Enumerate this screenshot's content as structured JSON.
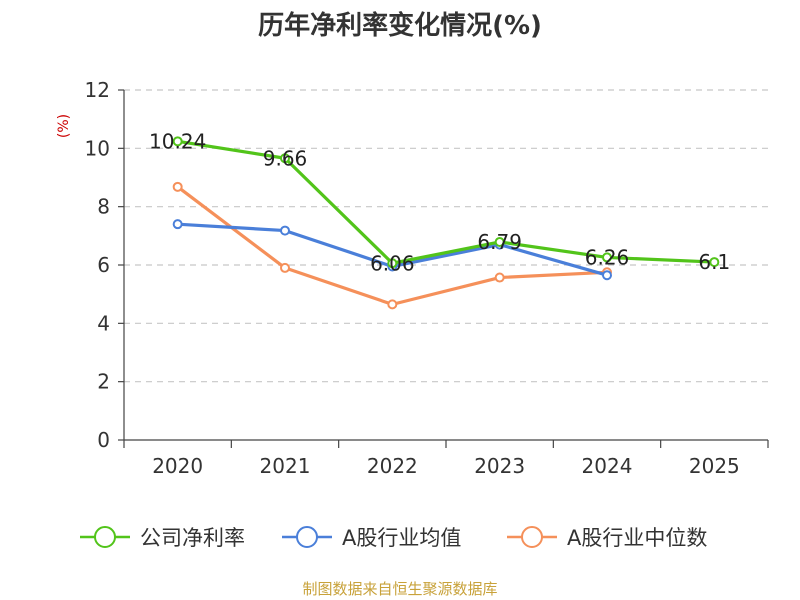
{
  "chart_data": {
    "type": "line",
    "title": "历年净利率变化情况(%)",
    "ylabel": "(%)",
    "xlabel": "",
    "categories": [
      "2020",
      "2021",
      "2022",
      "2023",
      "2024",
      "2025"
    ],
    "ylim": [
      0,
      12
    ],
    "yticks": [
      "0",
      "2",
      "4",
      "6",
      "8",
      "10",
      "12"
    ],
    "grid": true,
    "legend_position": "bottom",
    "series": [
      {
        "name": "公司净利率",
        "color": "#52c41a",
        "values": [
          10.24,
          9.66,
          6.06,
          6.79,
          6.26,
          6.1
        ],
        "labels": [
          "10.24",
          "9.66",
          "6.06",
          "6.79",
          "6.26",
          "6.1"
        ]
      },
      {
        "name": "A股行业均值",
        "color": "#4a7fd9",
        "values": [
          7.4,
          7.18,
          5.95,
          6.7,
          5.65,
          null
        ]
      },
      {
        "name": "A股行业中位数",
        "color": "#f5905a",
        "values": [
          8.68,
          5.9,
          4.65,
          5.57,
          5.75,
          null
        ]
      }
    ]
  },
  "footer": {
    "source": "制图数据来自恒生聚源数据库"
  }
}
